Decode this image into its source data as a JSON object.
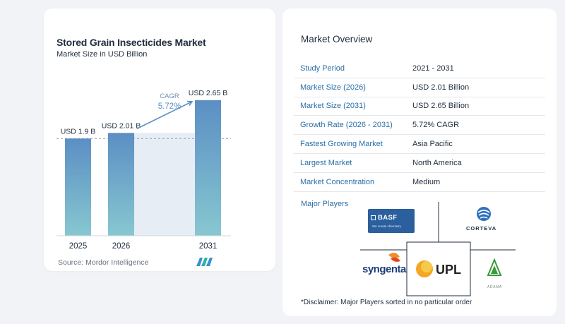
{
  "chart_data": {
    "type": "bar",
    "title": "Stored Grain Insecticides Market",
    "subtitle": "Market Size in USD Billion",
    "categories": [
      "2025",
      "2026",
      "2031"
    ],
    "values": [
      1.9,
      2.01,
      2.65
    ],
    "value_labels": [
      "USD 1.9 B",
      "USD 2.01 B",
      "USD 2.65 B"
    ],
    "cagr_label": "CAGR",
    "cagr_value": "5.72%",
    "ylim": [
      0,
      2.8
    ],
    "colors": {
      "bar_top": "#5b8fc4",
      "bar_bottom": "#87c7d0",
      "shade": "#e6edf5",
      "arrow": "#5b8fc4"
    }
  },
  "source": "Source:  Mordor Intelligence",
  "overview": {
    "title": "Market Overview",
    "rows": [
      {
        "key": "Study Period",
        "value": "2021 - 2031"
      },
      {
        "key": "Market Size (2026)",
        "value": "USD 2.01 Billion"
      },
      {
        "key": "Market Size (2031)",
        "value": "USD 2.65 Billion"
      },
      {
        "key": "Growth Rate (2026 - 2031)",
        "value": "5.72% CAGR"
      },
      {
        "key": "Fastest Growing Market",
        "value": "Asia Pacific"
      },
      {
        "key": "Largest Market",
        "value": "North America"
      },
      {
        "key": "Market Concentration",
        "value": "Medium"
      }
    ],
    "players_label": "Major Players",
    "players": {
      "basf": "BASF",
      "basf_tag": "We create chemistry",
      "corteva": "CORTEVA",
      "syngenta": "syngenta",
      "upl": "UPL",
      "adama": "ADAMA"
    },
    "disclaimer": "*Disclaimer: Major Players sorted in no particular order"
  }
}
